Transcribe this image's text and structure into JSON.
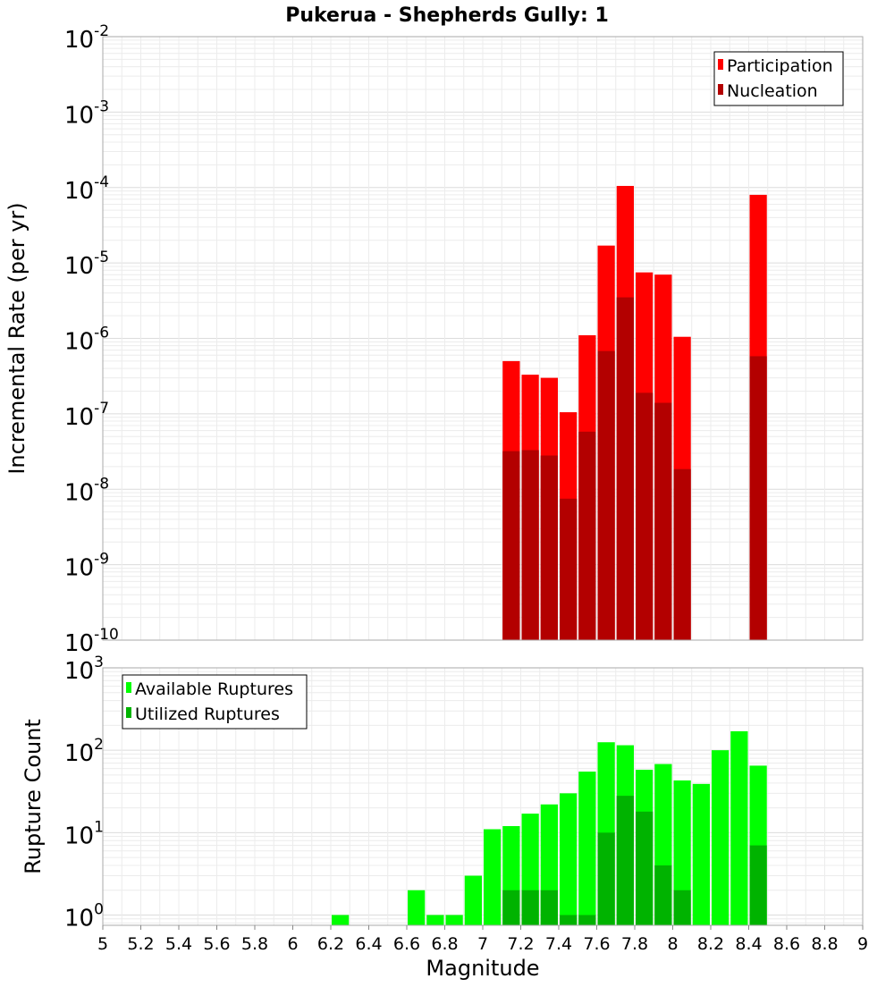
{
  "title": "Pukerua - Shepherds Gully: 1",
  "chart_data": [
    {
      "type": "bar",
      "title": "Pukerua - Shepherds Gully: 1",
      "xlabel": "Magnitude",
      "ylabel": "Incremental Rate (per yr)",
      "yscale": "log",
      "ylim": [
        1e-10,
        0.01
      ],
      "xlim": [
        5,
        9
      ],
      "ytick_exponents": [
        -10,
        -9,
        -8,
        -7,
        -6,
        -5,
        -4,
        -3,
        -2
      ],
      "legend_position": "top-right",
      "grid": true,
      "series": [
        {
          "name": "Participation",
          "color": "#ff0000",
          "x": [
            7.15,
            7.25,
            7.35,
            7.45,
            7.55,
            7.65,
            7.75,
            7.85,
            7.95,
            8.05,
            8.45
          ],
          "values": [
            5e-07,
            3.3e-07,
            3e-07,
            1.05e-07,
            1.1e-06,
            1.7e-05,
            0.000105,
            7.5e-06,
            7e-06,
            1.05e-06,
            8e-05
          ]
        },
        {
          "name": "Nucleation",
          "color": "#b30000",
          "x": [
            7.15,
            7.25,
            7.35,
            7.45,
            7.55,
            7.65,
            7.75,
            7.85,
            7.95,
            8.05,
            8.45
          ],
          "values": [
            3.2e-08,
            3.3e-08,
            2.8e-08,
            7.5e-09,
            5.8e-08,
            6.8e-07,
            3.5e-06,
            1.9e-07,
            1.4e-07,
            1.85e-08,
            5.8e-07
          ]
        }
      ]
    },
    {
      "type": "bar",
      "xlabel": "Magnitude",
      "ylabel": "Rupture Count",
      "yscale": "log",
      "ylim": [
        0.75,
        1000
      ],
      "xlim": [
        5,
        9
      ],
      "xticks": [
        "5",
        "5.2",
        "5.4",
        "5.6",
        "5.8",
        "6",
        "6.2",
        "6.4",
        "6.6",
        "6.8",
        "7",
        "7.2",
        "7.4",
        "7.6",
        "7.8",
        "8",
        "8.2",
        "8.4",
        "8.6",
        "8.8",
        "9"
      ],
      "ytick_exponents": [
        0,
        1,
        2,
        3
      ],
      "legend_position": "top-left",
      "grid": true,
      "series": [
        {
          "name": "Available Ruptures",
          "color": "#00ff00",
          "x": [
            6.25,
            6.65,
            6.75,
            6.85,
            6.95,
            7.05,
            7.15,
            7.25,
            7.35,
            7.45,
            7.55,
            7.65,
            7.75,
            7.85,
            7.95,
            8.05,
            8.15,
            8.25,
            8.35,
            8.45
          ],
          "values": [
            1,
            2,
            1,
            1,
            3,
            11,
            12,
            17,
            22,
            30,
            55,
            125,
            115,
            58,
            68,
            43,
            39,
            100,
            170,
            65
          ]
        },
        {
          "name": "Utilized Ruptures",
          "color": "#00b300",
          "x": [
            7.15,
            7.25,
            7.35,
            7.45,
            7.55,
            7.65,
            7.75,
            7.85,
            7.95,
            8.05,
            8.45
          ],
          "values": [
            2,
            2,
            2,
            1,
            1,
            10,
            28,
            18,
            4,
            2,
            7
          ]
        }
      ]
    }
  ]
}
